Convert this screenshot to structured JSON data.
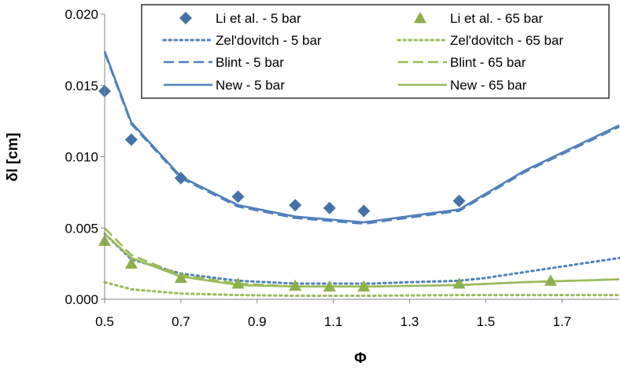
{
  "chart_data": {
    "type": "line",
    "xlabel": "Φ",
    "ylabel": "δl [cm]",
    "xlim": [
      0.5,
      1.85
    ],
    "ylim": [
      0,
      0.02
    ],
    "x_ticks": [
      0.5,
      0.7,
      0.9,
      1.1,
      1.3,
      1.5,
      1.7
    ],
    "x_tick_labels": [
      "0.5",
      "0.7",
      "0.9",
      "1.1",
      "1.3",
      "1.5",
      "1.7"
    ],
    "y_ticks": [
      0,
      0.005,
      0.01,
      0.015,
      0.02
    ],
    "y_tick_labels": [
      "0.000",
      "0.005",
      "0.010",
      "0.015",
      "0.020"
    ],
    "grid": false,
    "legend_position": "top-right",
    "colors": {
      "blue": "#4F81BD",
      "green": "#9BBB59",
      "marker_blue": "#4472A8",
      "marker_green": "#8DB04A"
    },
    "series": [
      {
        "name": "Li et al. - 5 bar",
        "style": "diamond-marker",
        "color": "marker_blue",
        "x": [
          0.5,
          0.57,
          0.7,
          0.85,
          1.0,
          1.09,
          1.18,
          1.43
        ],
        "y": [
          0.0146,
          0.0112,
          0.0085,
          0.0072,
          0.0066,
          0.0064,
          0.0062,
          0.0069
        ]
      },
      {
        "name": "Li et al. - 65 bar",
        "style": "triangle-marker",
        "color": "marker_green",
        "x": [
          0.5,
          0.57,
          0.7,
          0.85,
          1.0,
          1.09,
          1.18,
          1.43,
          1.67
        ],
        "y": [
          0.0041,
          0.0025,
          0.0015,
          0.0011,
          0.00095,
          0.0009,
          0.0009,
          0.0011,
          0.0013
        ]
      },
      {
        "name": "Zel'dovitch - 5 bar",
        "style": "dotted",
        "color": "blue",
        "x": [
          0.5,
          0.57,
          0.7,
          0.85,
          1.0,
          1.1,
          1.2,
          1.3,
          1.43,
          1.5,
          1.6,
          1.7,
          1.85
        ],
        "y": [
          0.0046,
          0.0028,
          0.0018,
          0.0013,
          0.0011,
          0.0011,
          0.0011,
          0.0012,
          0.0013,
          0.0015,
          0.0019,
          0.0023,
          0.0029
        ]
      },
      {
        "name": "Zel'dovitch - 65 bar",
        "style": "dotted",
        "color": "green",
        "x": [
          0.5,
          0.57,
          0.7,
          0.85,
          1.0,
          1.2,
          1.43,
          1.6,
          1.85
        ],
        "y": [
          0.0012,
          0.0007,
          0.0004,
          0.0003,
          0.00025,
          0.00025,
          0.0003,
          0.0003,
          0.0003
        ]
      },
      {
        "name": "Blint - 5 bar",
        "style": "dashed",
        "color": "blue",
        "x": [
          0.5,
          0.57,
          0.7,
          0.85,
          1.0,
          1.18,
          1.43,
          1.6,
          1.85
        ],
        "y": [
          0.0173,
          0.0123,
          0.0085,
          0.0065,
          0.0057,
          0.0053,
          0.0062,
          0.0089,
          0.0121
        ]
      },
      {
        "name": "Blint - 65 bar",
        "style": "dashed",
        "color": "green",
        "x": [
          0.5,
          0.57,
          0.7,
          0.85,
          1.0,
          1.2,
          1.43,
          1.6,
          1.85
        ],
        "y": [
          0.005,
          0.0031,
          0.0017,
          0.0011,
          0.0009,
          0.0009,
          0.001,
          0.0012,
          0.0014
        ]
      },
      {
        "name": "New - 5 bar",
        "style": "solid",
        "color": "blue",
        "x": [
          0.5,
          0.57,
          0.7,
          0.85,
          1.0,
          1.18,
          1.43,
          1.6,
          1.85
        ],
        "y": [
          0.0174,
          0.0124,
          0.0086,
          0.0066,
          0.0058,
          0.0054,
          0.0063,
          0.009,
          0.0122
        ]
      },
      {
        "name": "New - 65 bar",
        "style": "solid",
        "color": "green",
        "x": [
          0.5,
          0.57,
          0.7,
          0.85,
          1.0,
          1.2,
          1.43,
          1.6,
          1.85
        ],
        "y": [
          0.0046,
          0.0029,
          0.0016,
          0.001,
          0.0009,
          0.0009,
          0.001,
          0.0012,
          0.0014
        ]
      }
    ]
  }
}
